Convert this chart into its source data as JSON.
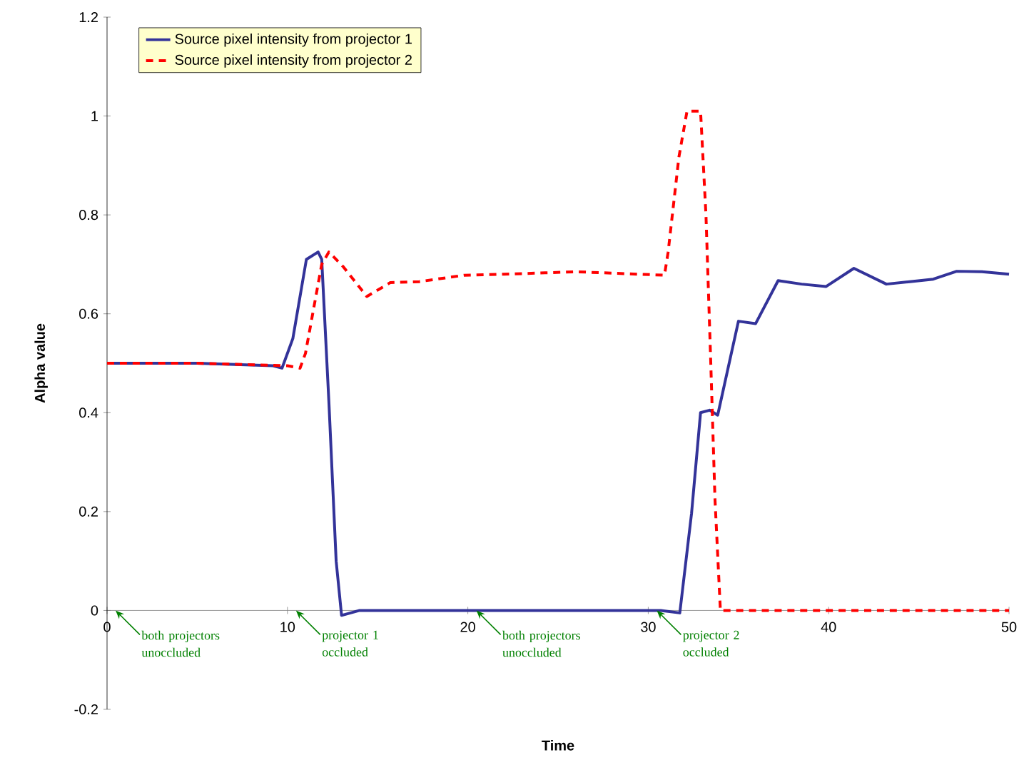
{
  "chart_data": {
    "type": "line",
    "xlabel": "Time",
    "ylabel": "Alpha value",
    "xlim": [
      0,
      50
    ],
    "ylim": [
      -0.2,
      1.2
    ],
    "xticks": [
      0,
      10,
      20,
      30,
      40,
      50
    ],
    "yticks": [
      -0.2,
      0,
      0.2,
      0.4,
      0.6,
      0.8,
      1,
      1.2
    ],
    "legend": "top left",
    "grid": false,
    "marker": "none",
    "series": [
      {
        "name": "Source pixel intensity from projector 1",
        "color": "#333399",
        "line_style": "solid",
        "x": [
          0,
          5,
          9.2,
          9.7,
          10.3,
          11.05,
          11.7,
          11.9,
          12.3,
          12.7,
          13.0,
          14.0,
          20,
          25,
          30.7,
          31.75,
          32.4,
          32.9,
          33.4,
          33.85,
          35.0,
          35.95,
          37.2,
          38.5,
          39.85,
          41.4,
          43.2,
          44.5,
          45.8,
          47.1,
          48.5,
          50
        ],
        "values": [
          0.5,
          0.5,
          0.495,
          0.49,
          0.55,
          0.71,
          0.725,
          0.71,
          0.42,
          0.1,
          -0.01,
          0,
          0,
          0,
          0,
          -0.005,
          0.196,
          0.4,
          0.405,
          0.395,
          0.585,
          0.58,
          0.667,
          0.66,
          0.655,
          0.692,
          0.66,
          0.665,
          0.67,
          0.686,
          0.685,
          0.68
        ]
      },
      {
        "name": "Source pixel intensity from projector 2",
        "color": "#ff0000",
        "line_style": "dashed",
        "x": [
          0,
          5,
          10.0,
          10.7,
          11.0,
          11.45,
          11.9,
          12.3,
          13.1,
          14.4,
          15.7,
          17.3,
          19.8,
          22,
          26,
          30.9,
          31.1,
          31.7,
          32.15,
          32.9,
          33.2,
          33.45,
          33.7,
          34.0,
          35,
          40,
          45,
          50
        ],
        "values": [
          0.5,
          0.5,
          0.495,
          0.49,
          0.52,
          0.61,
          0.7,
          0.725,
          0.695,
          0.635,
          0.663,
          0.665,
          0.678,
          0.68,
          0.685,
          0.678,
          0.724,
          0.917,
          1.01,
          1.01,
          0.8,
          0.52,
          0.225,
          0,
          0,
          0,
          0,
          0
        ]
      }
    ],
    "annotations": [
      "both projectors unoccluded",
      "projector 1 occluded",
      "both projectors unoccluded",
      "projector 2 occluded"
    ]
  }
}
